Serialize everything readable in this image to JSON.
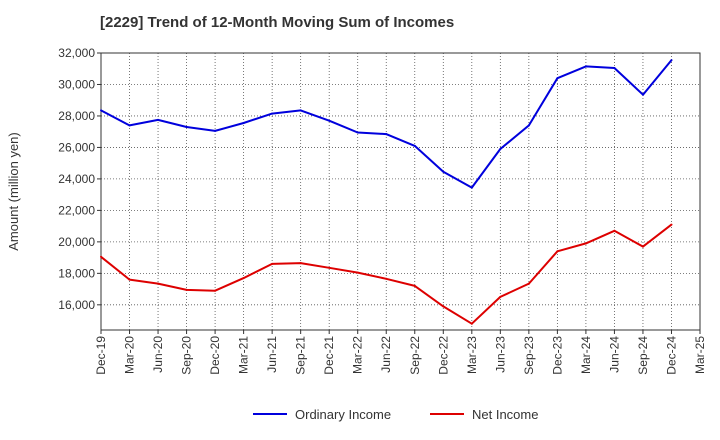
{
  "chart_data": {
    "type": "line",
    "title": "[2229]  Trend of 12-Month Moving Sum of Incomes",
    "xlabel": "",
    "ylabel": "Amount (million yen)",
    "ylim": [
      14400,
      32000
    ],
    "yticks": [
      16000,
      18000,
      20000,
      22000,
      24000,
      26000,
      28000,
      30000,
      32000
    ],
    "ytick_labels": [
      "16,000",
      "18,000",
      "20,000",
      "22,000",
      "24,000",
      "26,000",
      "28,000",
      "30,000",
      "32,000"
    ],
    "categories": [
      "Dec-19",
      "Mar-20",
      "Jun-20",
      "Sep-20",
      "Dec-20",
      "Mar-21",
      "Jun-21",
      "Sep-21",
      "Dec-21",
      "Mar-22",
      "Jun-22",
      "Sep-22",
      "Dec-22",
      "Mar-23",
      "Jun-23",
      "Sep-23",
      "Dec-23",
      "Mar-24",
      "Jun-24",
      "Sep-24",
      "Dec-24",
      "Mar-25"
    ],
    "grid": true,
    "legend_position": "bottom",
    "series": [
      {
        "name": "Ordinary Income",
        "color": "#0000dd",
        "values": [
          28350,
          27400,
          27750,
          27300,
          27050,
          27550,
          28150,
          28350,
          27700,
          26950,
          26850,
          26100,
          24450,
          23450,
          25900,
          27400,
          30400,
          31150,
          31050,
          29350,
          31550,
          null
        ]
      },
      {
        "name": "Net Income",
        "color": "#dd0000",
        "values": [
          19050,
          17600,
          17350,
          16950,
          16900,
          17700,
          18600,
          18650,
          18350,
          18050,
          17650,
          17200,
          15900,
          14800,
          16500,
          17350,
          19400,
          19900,
          20700,
          19700,
          21100,
          null
        ]
      }
    ]
  }
}
